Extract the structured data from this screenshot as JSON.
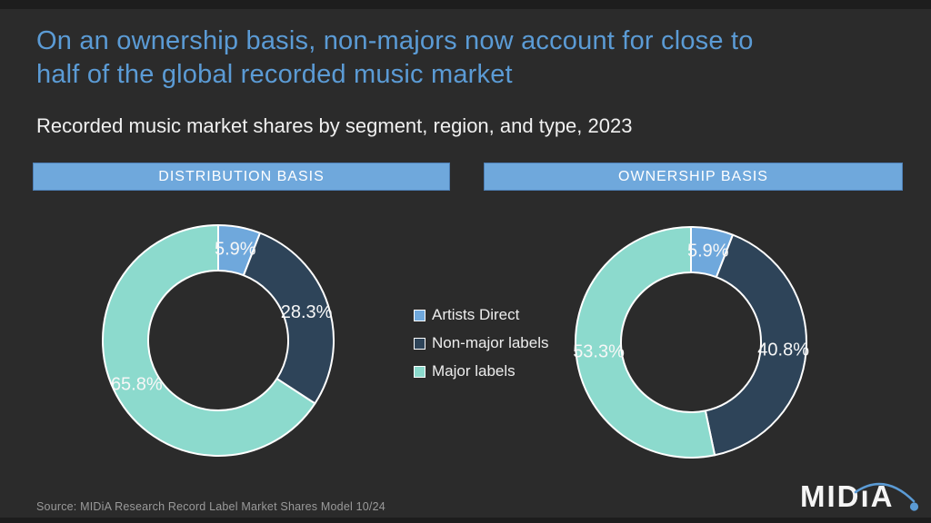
{
  "title_lines": [
    "On an ownership basis, non-majors now account for close to",
    "half of the global recorded music market"
  ],
  "subtitle": "Recorded music market shares by segment, region, and type, 2023",
  "panels": [
    {
      "header": "DISTRIBUTION BASIS"
    },
    {
      "header": "OWNERSHIP BASIS"
    }
  ],
  "legend": {
    "items": [
      {
        "label": "Artists Direct",
        "color": "#6fa8dc"
      },
      {
        "label": "Non-major labels",
        "color": "#2e4459"
      },
      {
        "label": "Major labels",
        "color": "#8cdacd"
      }
    ]
  },
  "chart_data": [
    {
      "type": "pie",
      "variant": "donut",
      "title": "DISTRIBUTION BASIS",
      "labels": [
        "Artists Direct",
        "Non-major labels",
        "Major labels"
      ],
      "values": [
        5.9,
        28.3,
        65.8
      ],
      "colors": [
        "#6fa8dc",
        "#2e4459",
        "#8cdacd"
      ],
      "unit": "%",
      "start_angle": "top",
      "direction": "clockwise",
      "hole_ratio": 0.6,
      "slice_stroke": "#ffffff"
    },
    {
      "type": "pie",
      "variant": "donut",
      "title": "OWNERSHIP BASIS",
      "labels": [
        "Artists Direct",
        "Non-major labels",
        "Major labels"
      ],
      "values": [
        5.9,
        40.8,
        53.3
      ],
      "colors": [
        "#6fa8dc",
        "#2e4459",
        "#8cdacd"
      ],
      "unit": "%",
      "start_angle": "top",
      "direction": "clockwise",
      "hole_ratio": 0.6,
      "slice_stroke": "#ffffff"
    }
  ],
  "source": "Source: MIDiA Research Record Label Market Shares Model 10/24",
  "logo": {
    "text": "MIDıA"
  },
  "colors": {
    "background": "#2b2b2b",
    "accent_blue": "#5b9bd5",
    "bar_fill": "#6fa8dc",
    "slice_artists_direct": "#6fa8dc",
    "slice_non_major": "#2e4459",
    "slice_major": "#8cdacd",
    "label_text": "#f7f7f7",
    "source_text": "#9a9a9a"
  }
}
